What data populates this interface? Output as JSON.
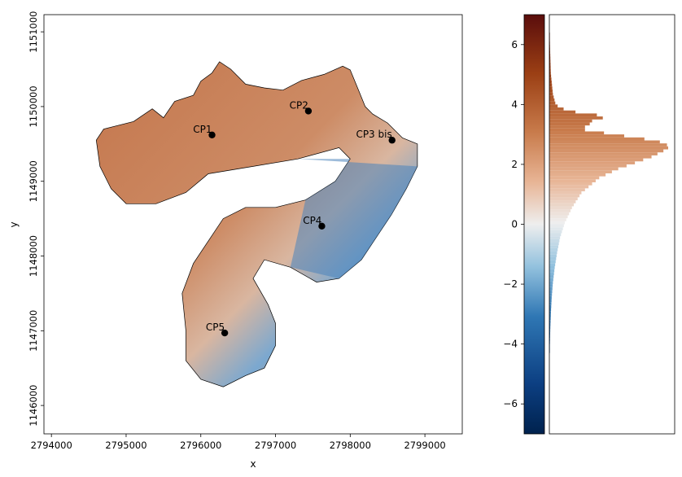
{
  "chart_data": [
    {
      "type": "heatmap",
      "title": "",
      "xlabel": "x",
      "ylabel": "y",
      "xlim": [
        2793900,
        2799500
      ],
      "ylim": [
        1145620,
        1151230
      ],
      "x_ticks": [
        2794000,
        2795000,
        2796000,
        2797000,
        2798000,
        2799000
      ],
      "y_ticks": [
        1146000,
        1147000,
        1148000,
        1149000,
        1150000,
        1151000
      ],
      "x_tick_labels": [
        "2794000",
        "2795000",
        "2796000",
        "2797000",
        "2798000",
        "2799000"
      ],
      "y_tick_labels": [
        "1146000",
        "1147000",
        "1148000",
        "1149000",
        "1150000",
        "1151000"
      ],
      "grid": false,
      "colormap": "diverging blue-white-brown",
      "points": [
        {
          "label": "CP1",
          "x": 2796150,
          "y": 1149620
        },
        {
          "label": "CP2",
          "x": 2797440,
          "y": 1149940
        },
        {
          "label": "CP3 bis",
          "x": 2798560,
          "y": 1149550
        },
        {
          "label": "CP4",
          "x": 2797620,
          "y": 1148400
        },
        {
          "label": "CP5",
          "x": 2796320,
          "y": 1146970
        }
      ],
      "outline": [
        [
          2794600,
          1149550
        ],
        [
          2794700,
          1149700
        ],
        [
          2795100,
          1149800
        ],
        [
          2795350,
          1149970
        ],
        [
          2795500,
          1149850
        ],
        [
          2795650,
          1150070
        ],
        [
          2795900,
          1150150
        ],
        [
          2796000,
          1150340
        ],
        [
          2796150,
          1150450
        ],
        [
          2796250,
          1150600
        ],
        [
          2796400,
          1150500
        ],
        [
          2796600,
          1150300
        ],
        [
          2796850,
          1150250
        ],
        [
          2797100,
          1150220
        ],
        [
          2797350,
          1150350
        ],
        [
          2797650,
          1150430
        ],
        [
          2797900,
          1150540
        ],
        [
          2798000,
          1150490
        ],
        [
          2798120,
          1150200
        ],
        [
          2798200,
          1150000
        ],
        [
          2798300,
          1149900
        ],
        [
          2798500,
          1149780
        ],
        [
          2798700,
          1149580
        ],
        [
          2798900,
          1149500
        ],
        [
          2798900,
          1149200
        ],
        [
          2798750,
          1148900
        ],
        [
          2798550,
          1148550
        ],
        [
          2798350,
          1148250
        ],
        [
          2798150,
          1147950
        ],
        [
          2797850,
          1147700
        ],
        [
          2797550,
          1147650
        ],
        [
          2797200,
          1147850
        ],
        [
          2796850,
          1147950
        ],
        [
          2796700,
          1147700
        ],
        [
          2796900,
          1147350
        ],
        [
          2797000,
          1147100
        ],
        [
          2797000,
          1146800
        ],
        [
          2796850,
          1146500
        ],
        [
          2796600,
          1146400
        ],
        [
          2796300,
          1146250
        ],
        [
          2796000,
          1146350
        ],
        [
          2795800,
          1146600
        ],
        [
          2795800,
          1147000
        ],
        [
          2795750,
          1147500
        ],
        [
          2795900,
          1147900
        ],
        [
          2796100,
          1148200
        ],
        [
          2796300,
          1148500
        ],
        [
          2796600,
          1148650
        ],
        [
          2797000,
          1148650
        ],
        [
          2797400,
          1148750
        ],
        [
          2797800,
          1149000
        ],
        [
          2798000,
          1149300
        ],
        [
          2797850,
          1149450
        ],
        [
          2797300,
          1149300
        ],
        [
          2796700,
          1149200
        ],
        [
          2796100,
          1149100
        ],
        [
          2795800,
          1148850
        ],
        [
          2795400,
          1148700
        ],
        [
          2795000,
          1148700
        ],
        [
          2794800,
          1148900
        ],
        [
          2794650,
          1149200
        ],
        [
          2794600,
          1149550
        ]
      ],
      "notes": ""
    },
    {
      "type": "heatmap",
      "title": "",
      "colorbar_range": [
        -7,
        7
      ],
      "colorbar_ticks": [
        -6,
        -4,
        -2,
        0,
        2,
        4,
        6
      ],
      "colorbar_tick_labels": [
        "−6",
        "−4",
        "−2",
        "0",
        "2",
        "4",
        "6"
      ]
    },
    {
      "type": "bar",
      "orientation": "horizontal",
      "title": "",
      "ylim": [
        -7,
        7
      ],
      "bin_width": 0.1,
      "bins": [
        [
          -4.3,
          0.002
        ],
        [
          -4.0,
          0.005
        ],
        [
          -3.5,
          0.008
        ],
        [
          -3.0,
          0.013
        ],
        [
          -2.5,
          0.02
        ],
        [
          -2.0,
          0.03
        ],
        [
          -1.5,
          0.045
        ],
        [
          -1.0,
          0.065
        ],
        [
          -0.5,
          0.09
        ],
        [
          0.0,
          0.13
        ],
        [
          0.5,
          0.19
        ],
        [
          1.0,
          0.27
        ],
        [
          1.5,
          0.42
        ],
        [
          1.8,
          0.58
        ],
        [
          2.0,
          0.72
        ],
        [
          2.2,
          0.86
        ],
        [
          2.4,
          0.96
        ],
        [
          2.5,
          1.0
        ],
        [
          2.6,
          0.99
        ],
        [
          2.7,
          0.93
        ],
        [
          2.8,
          0.8
        ],
        [
          2.9,
          0.63
        ],
        [
          3.0,
          0.46
        ],
        [
          3.1,
          0.3
        ],
        [
          3.2,
          0.3
        ],
        [
          3.3,
          0.34
        ],
        [
          3.4,
          0.36
        ],
        [
          3.5,
          0.45
        ],
        [
          3.6,
          0.4
        ],
        [
          3.7,
          0.22
        ],
        [
          3.8,
          0.12
        ],
        [
          3.9,
          0.07
        ],
        [
          4.0,
          0.05
        ],
        [
          4.3,
          0.03
        ],
        [
          5.0,
          0.012
        ],
        [
          5.8,
          0.006
        ],
        [
          6.3,
          0.003
        ]
      ]
    }
  ]
}
